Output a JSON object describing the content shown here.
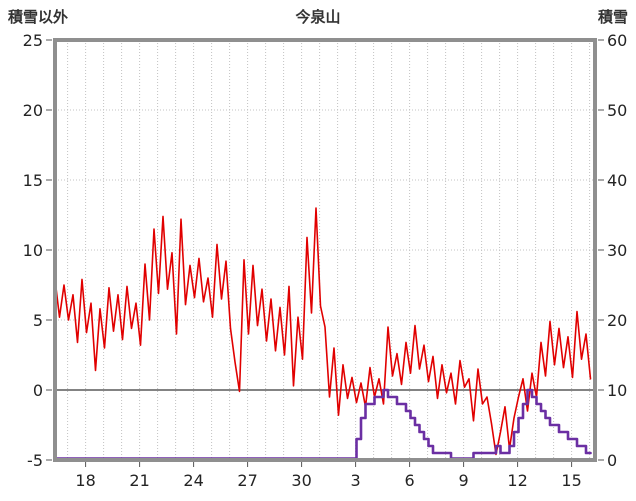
{
  "chart_data": {
    "type": "line",
    "title": "今泉山",
    "left_axis": {
      "label": "積雪以外",
      "min": -5,
      "max": 25,
      "ticks": [
        -5,
        0,
        5,
        10,
        15,
        20,
        25
      ]
    },
    "right_axis": {
      "label": "積雪",
      "min": 0,
      "max": 60,
      "ticks": [
        0,
        10,
        20,
        30,
        40,
        50,
        60
      ]
    },
    "x_axis": {
      "min": 0,
      "max": 30,
      "grid_start": 0.7,
      "grid_step": 1,
      "tick_positions": [
        1.7,
        4.7,
        7.7,
        10.7,
        13.7,
        16.7,
        19.7,
        22.7,
        25.7,
        28.7
      ],
      "tick_labels": [
        "18",
        "21",
        "24",
        "27",
        "30",
        "3",
        "6",
        "9",
        "12",
        "15"
      ]
    },
    "colors": {
      "grid": "#c3c3c3",
      "zero_line": "#5a5a5a",
      "frame": "#8f8f8f",
      "text": "#242424",
      "temperature": "#e10000",
      "snow": "#6b2fa3"
    },
    "series": [
      {
        "name": "temperature",
        "axis": "left",
        "color": "#e10000",
        "width": 1.6,
        "step": false,
        "x_step": 0.25,
        "values": [
          7.9,
          5.2,
          7.5,
          5.0,
          6.8,
          3.4,
          7.9,
          4.1,
          6.2,
          1.4,
          5.8,
          3.0,
          7.3,
          4.2,
          6.8,
          3.6,
          7.4,
          4.4,
          6.2,
          3.2,
          9.0,
          5.0,
          11.5,
          6.9,
          12.4,
          7.2,
          9.8,
          4.0,
          12.2,
          6.1,
          8.9,
          6.6,
          9.4,
          6.3,
          8.0,
          5.2,
          10.4,
          6.5,
          9.2,
          4.4,
          2.0,
          -0.1,
          9.3,
          4.0,
          8.9,
          4.6,
          7.2,
          3.5,
          6.5,
          2.8,
          5.9,
          2.5,
          7.4,
          0.3,
          5.2,
          2.2,
          10.9,
          5.5,
          13.0,
          6.0,
          4.5,
          -0.5,
          3.0,
          -1.8,
          1.8,
          -0.6,
          0.9,
          -0.9,
          0.5,
          -1.2,
          1.6,
          -0.5,
          0.8,
          -1.0,
          4.5,
          1.0,
          2.6,
          0.4,
          3.4,
          1.2,
          4.6,
          1.5,
          3.2,
          0.6,
          2.4,
          -0.6,
          1.8,
          -0.2,
          1.2,
          -1.0,
          2.1,
          0.2,
          0.8,
          -2.2,
          1.5,
          -1.0,
          -0.5,
          -2.4,
          -4.6,
          -3.0,
          -1.2,
          -4.2,
          -2.0,
          -0.5,
          0.8,
          -1.5,
          1.2,
          -0.5,
          3.4,
          1.0,
          4.9,
          1.8,
          4.4,
          1.6,
          3.8,
          0.9,
          5.6,
          2.2,
          4.0,
          0.8
        ]
      },
      {
        "name": "snow-depth",
        "axis": "right",
        "color": "#6b2fa3",
        "width": 2.6,
        "step": true,
        "x_step": 0.25,
        "values": [
          0,
          0,
          0,
          0,
          0,
          0,
          0,
          0,
          0,
          0,
          0,
          0,
          0,
          0,
          0,
          0,
          0,
          0,
          0,
          0,
          0,
          0,
          0,
          0,
          0,
          0,
          0,
          0,
          0,
          0,
          0,
          0,
          0,
          0,
          0,
          0,
          0,
          0,
          0,
          0,
          0,
          0,
          0,
          0,
          0,
          0,
          0,
          0,
          0,
          0,
          0,
          0,
          0,
          0,
          0,
          0,
          0,
          0,
          0,
          0,
          0,
          0,
          0,
          0,
          0,
          0,
          0,
          3,
          6,
          8,
          8,
          9,
          9,
          10,
          9,
          9,
          8,
          8,
          7,
          6,
          5,
          4,
          3,
          2,
          1,
          1,
          1,
          1,
          0,
          0,
          0,
          0,
          0,
          1,
          1,
          1,
          1,
          1,
          2,
          1,
          1,
          2,
          4,
          6,
          8,
          10,
          9,
          8,
          7,
          6,
          5,
          5,
          4,
          4,
          3,
          3,
          2,
          2,
          1,
          1
        ]
      }
    ]
  }
}
